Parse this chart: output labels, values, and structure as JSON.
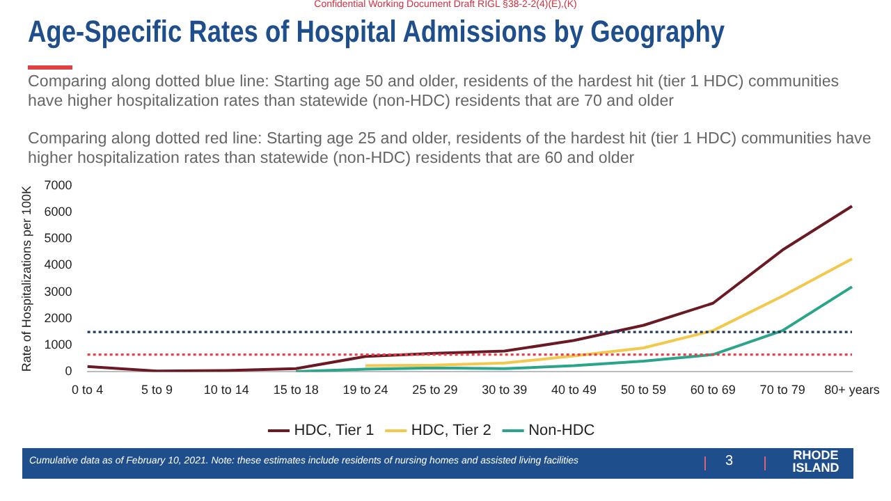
{
  "chart_data": {
    "type": "line",
    "title": "Age-Specific Rates of Hospital Admissions by Geography",
    "ylabel": "Rate of Hospitalizations per 100K",
    "annotations": [
      "Confidential Working Document Draft RIGL §38-2-2(4)(E),(K)",
      "Comparing along dotted blue line: Starting age 50 and older, residents of the hardest hit (tier 1 HDC) communities have higher hospitalization rates than statewide (non-HDC) residents that are 70 and older",
      "Comparing along dotted red line: Starting age 25 and older, residents of the hardest hit (tier 1 HDC) communities have higher hospitalization rates than statewide (non-HDC) residents that are 60 and older",
      "Cumulative data as of February 10, 2021. Note: these estimates include residents of nursing homes and assisted living facilities",
      "3",
      "RHODE ISLAND"
    ],
    "categories": [
      "0 to 4",
      "5 to 9",
      "10 to 14",
      "15 to 18",
      "19 to 24",
      "25 to 29",
      "30 to 39",
      "40 to 49",
      "50 to 59",
      "60 to 69",
      "70 to 79",
      "80+ years"
    ],
    "series": [
      {
        "name": "HDC, Tier 1",
        "color": "#6b1a24",
        "values": [
          200,
          30,
          50,
          120,
          580,
          700,
          780,
          1180,
          1750,
          2580,
          4580,
          6230
        ]
      },
      {
        "name": "HDC, Tier 2",
        "color": "#f2c94c",
        "values": [
          null,
          null,
          null,
          null,
          230,
          250,
          330,
          600,
          900,
          1550,
          2850,
          4250
        ]
      },
      {
        "name": "Non-HDC",
        "color": "#2aa58a",
        "values": [
          null,
          null,
          null,
          10,
          100,
          150,
          120,
          230,
          400,
          650,
          1550,
          3200
        ]
      }
    ],
    "ylim": [
      0,
      7000
    ],
    "yticks": [
      0,
      1000,
      2000,
      3000,
      4000,
      5000,
      6000,
      7000
    ],
    "grid": false,
    "legend": "bottom",
    "marker": "none",
    "line_style": "solid",
    "ref_lines": [
      {
        "axis": "y",
        "value": 1500,
        "color": "#1f3864",
        "line_style": "dotted"
      },
      {
        "axis": "y",
        "value": 650,
        "color": "#e8404a",
        "line_style": "dotted"
      }
    ]
  }
}
